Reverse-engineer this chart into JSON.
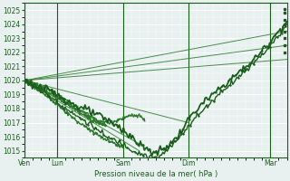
{
  "xlabel": "Pression niveau de la mer( hPa )",
  "bg_color": "#e8f0f0",
  "grid_color": "#ffffff",
  "dark_green": "#1a5c1a",
  "mid_green": "#2d7a2d",
  "light_green": "#4a9a4a",
  "ylim": [
    1014.5,
    1025.5
  ],
  "yticks": [
    1015,
    1016,
    1017,
    1018,
    1019,
    1020,
    1021,
    1022,
    1023,
    1024,
    1025
  ],
  "xlim": [
    0,
    96
  ],
  "vlines_x": [
    0,
    12,
    36,
    60,
    90
  ],
  "vlines_labels": [
    "Ven",
    "Lun",
    "Sam",
    "Dim",
    "Mar"
  ],
  "straight_lines": [
    {
      "x0": 0,
      "y0": 1020,
      "x1": 96,
      "y1": 1023.5
    },
    {
      "x0": 0,
      "y0": 1020,
      "x1": 96,
      "y1": 1022.5
    },
    {
      "x0": 0,
      "y0": 1020,
      "x1": 96,
      "y1": 1021.5
    },
    {
      "x0": 0,
      "y0": 1020,
      "x1": 60,
      "y1": 1017.0
    },
    {
      "x0": 0,
      "y0": 1020,
      "x1": 42,
      "y1": 1015.0
    },
    {
      "x0": 0,
      "y0": 1020,
      "x1": 42,
      "y1": 1015.5
    }
  ]
}
